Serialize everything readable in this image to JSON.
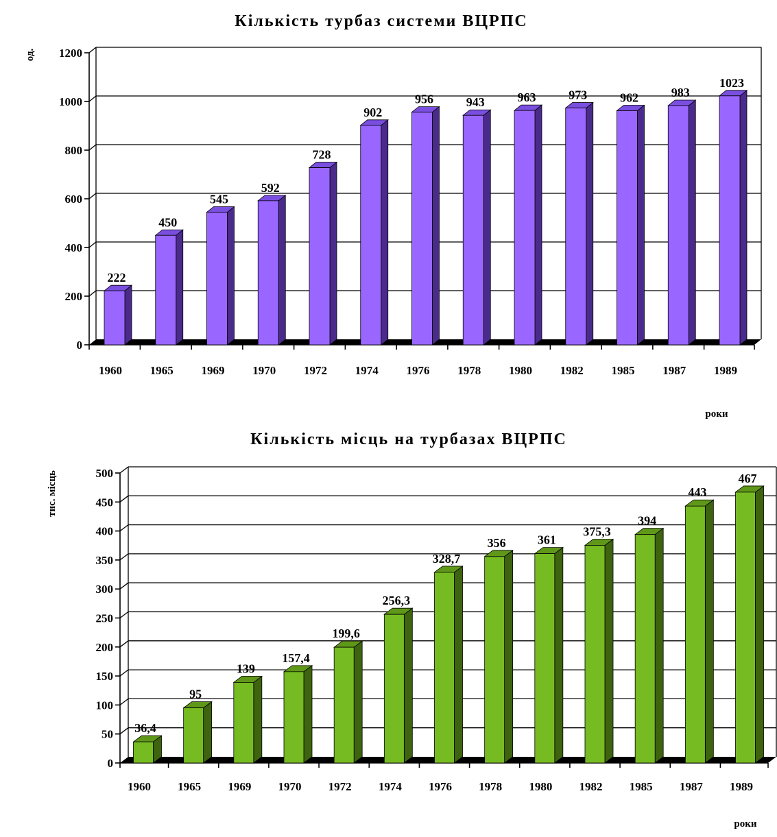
{
  "chart_data": [
    {
      "type": "bar",
      "title": "Кількість турбаз системи ВЦРПС",
      "ylabel": "од.",
      "xlabel": "роки",
      "ylim": [
        0,
        1200
      ],
      "yticks": [
        0,
        200,
        400,
        600,
        800,
        1000,
        1200
      ],
      "categories": [
        "1960",
        "1965",
        "1969",
        "1970",
        "1972",
        "1974",
        "1976",
        "1978",
        "1980",
        "1982",
        "1985",
        "1987",
        "1989"
      ],
      "values": [
        222,
        450,
        545,
        592,
        728,
        902,
        956,
        943,
        963,
        973,
        962,
        983,
        1023
      ],
      "value_labels": [
        "222",
        "450",
        "545",
        "592",
        "728",
        "902",
        "956",
        "943",
        "963",
        "973",
        "962",
        "983",
        "1023"
      ],
      "grid": true,
      "bar_style": "3d",
      "colors": {
        "front": "#9966ff",
        "side": "#4a2b8c",
        "top": "#7a4fe0"
      }
    },
    {
      "type": "bar",
      "title": "Кількість місць на турбазах ВЦРПС",
      "ylabel": "тис. місць",
      "xlabel": "роки",
      "ylim": [
        0,
        500
      ],
      "yticks": [
        0,
        50,
        100,
        150,
        200,
        250,
        300,
        350,
        400,
        450,
        500
      ],
      "categories": [
        "1960",
        "1965",
        "1969",
        "1970",
        "1972",
        "1974",
        "1976",
        "1978",
        "1980",
        "1982",
        "1985",
        "1987",
        "1989"
      ],
      "values": [
        36.4,
        95,
        139,
        157.4,
        199.6,
        256.3,
        328.7,
        356,
        361,
        375.3,
        394,
        443,
        467
      ],
      "value_labels": [
        "36,4",
        "95",
        "139",
        "157,4",
        "199,6",
        "256,3",
        "328,7",
        "356",
        "361",
        "375,3",
        "394",
        "443",
        "467"
      ],
      "grid": true,
      "bar_style": "3d",
      "colors": {
        "front": "#77bb22",
        "side": "#3f6410",
        "top": "#5f9818"
      }
    }
  ]
}
